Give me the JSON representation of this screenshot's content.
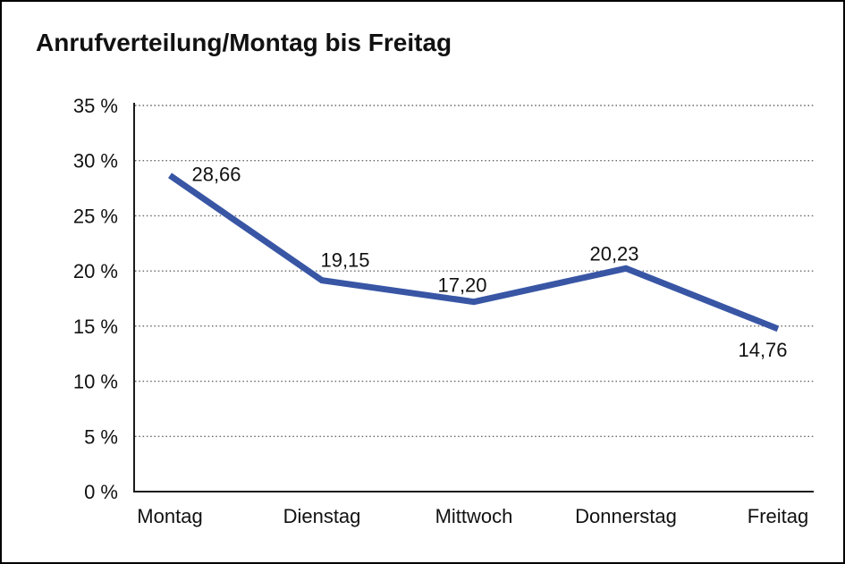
{
  "chart_data": {
    "type": "line",
    "title": "Anrufverteilung/Montag bis Freitag",
    "categories": [
      "Montag",
      "Dienstag",
      "Mittwoch",
      "Donnerstag",
      "Freitag"
    ],
    "values": [
      28.66,
      19.15,
      17.2,
      20.23,
      14.76
    ],
    "value_labels": [
      "28,66",
      "19,15",
      "17,20",
      "20,23",
      "14,76"
    ],
    "ylabel": "",
    "xlabel": "",
    "ylim": [
      0,
      35
    ],
    "ytick_step": 5,
    "ytick_labels": [
      "0 %",
      "5 %",
      "10 %",
      "15 %",
      "20 %",
      "25 %",
      "30 %",
      "35 %"
    ],
    "grid": "horizontal-dotted",
    "legend": "none",
    "colors": {
      "line": "#3956a5",
      "axis": "#1a1a1a",
      "gridline": "#666666",
      "text": "#111111",
      "background": "#ffffff",
      "frame_border": "#000000"
    }
  }
}
